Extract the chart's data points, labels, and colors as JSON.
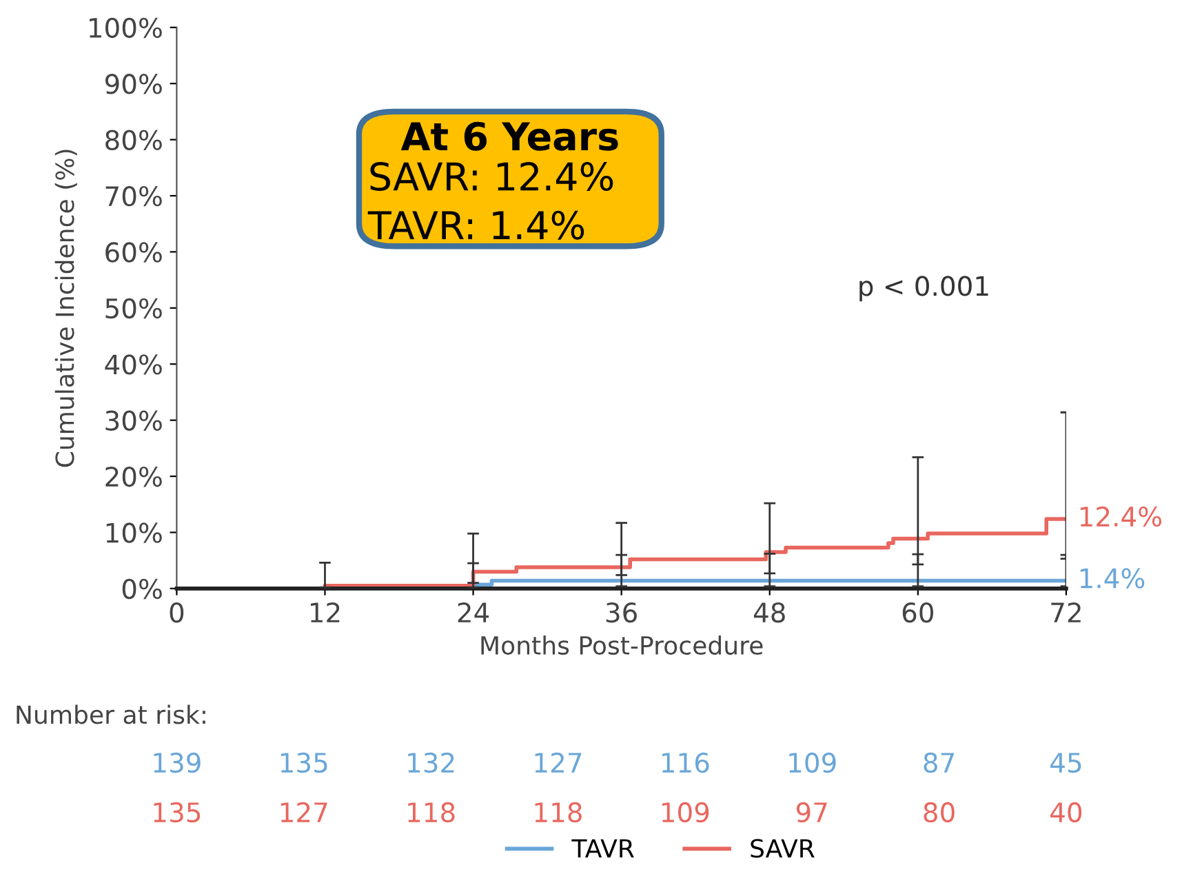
{
  "chart_data": {
    "type": "step",
    "xlabel": "Months Post-Procedure",
    "ylabel": "Cumulative Incidence (%)",
    "xlim": [
      0,
      72
    ],
    "xticks": [
      0,
      12,
      24,
      36,
      48,
      60,
      72
    ],
    "ylim": [
      0,
      100
    ],
    "yticks": [
      {
        "value": 0,
        "label": "0%"
      },
      {
        "value": 10,
        "label": "10%"
      },
      {
        "value": 20,
        "label": "20%"
      },
      {
        "value": 30,
        "label": "30%"
      },
      {
        "value": 40,
        "label": "40%"
      },
      {
        "value": 50,
        "label": "50%"
      },
      {
        "value": 60,
        "label": "60%"
      },
      {
        "value": 70,
        "label": "70%"
      },
      {
        "value": 80,
        "label": "80%"
      },
      {
        "value": 90,
        "label": "90%"
      },
      {
        "value": 100,
        "label": "100%"
      }
    ],
    "grid": false,
    "legend": "bottom",
    "marker": "none",
    "line_style": "solid",
    "series": [
      {
        "name": "TAVR",
        "color": "#6aa6d8",
        "x": [
          0,
          24,
          25.5,
          36,
          48,
          60,
          72
        ],
        "values": [
          0,
          0.7,
          1.4,
          1.4,
          1.4,
          1.4,
          1.4
        ],
        "errors": [
          null,
          [
            0.2,
            4.5
          ],
          null,
          [
            0.4,
            6.0
          ],
          [
            0.4,
            6.2
          ],
          [
            0.4,
            6.1
          ],
          [
            0.4,
            6.0
          ]
        ],
        "value_labels": [
          null,
          null,
          null,
          null,
          null,
          null,
          "1.4%"
        ]
      },
      {
        "name": "SAVR",
        "color": "#e8675f",
        "x": [
          0,
          12,
          24,
          27.5,
          36,
          36.7,
          47.7,
          48,
          49.3,
          57.6,
          58,
          60,
          60.8,
          70.4,
          72
        ],
        "values": [
          0,
          0.5,
          3.0,
          3.8,
          3.8,
          5.2,
          6.5,
          6.5,
          7.3,
          8.1,
          8.9,
          8.9,
          9.8,
          12.4,
          12.4
        ],
        "errors": [
          null,
          [
            0.2,
            4.6
          ],
          [
            1.0,
            9.8
          ],
          null,
          [
            2.4,
            11.7
          ],
          null,
          null,
          [
            2.7,
            15.2
          ],
          null,
          null,
          null,
          [
            4.3,
            23.4
          ],
          null,
          null,
          [
            5.3,
            31.4
          ]
        ],
        "value_labels": [
          null,
          null,
          null,
          null,
          null,
          null,
          null,
          null,
          null,
          null,
          null,
          null,
          null,
          null,
          "12.4%"
        ]
      }
    ],
    "annotations": [
      "At 6 Years\nSAVR: 12.4%\nTAVR: 1.4%",
      "p < 0.001",
      "Number at risk:",
      "139",
      "135",
      "132",
      "127",
      "116",
      "109",
      "87",
      "45",
      "135",
      "127",
      "118",
      "118",
      "109",
      "97",
      "80",
      "40"
    ]
  }
}
